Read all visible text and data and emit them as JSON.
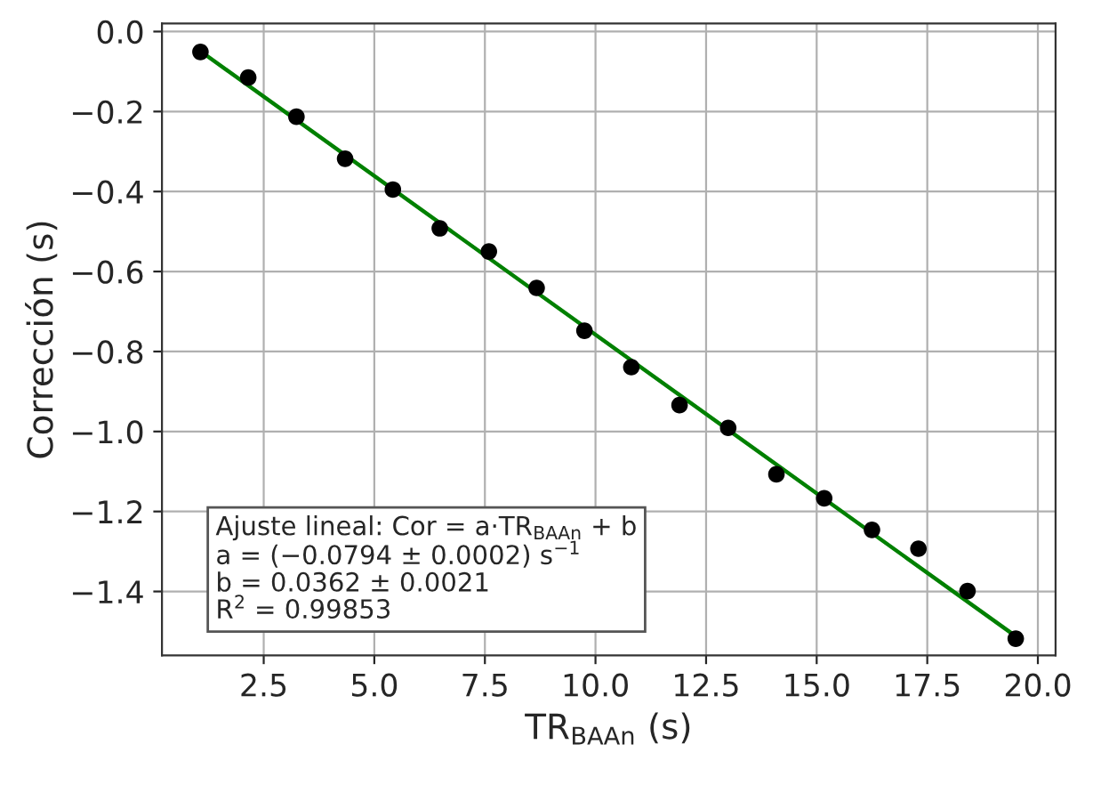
{
  "chart_data": {
    "type": "scatter",
    "xlabel": "TR$_{BAAn}$ (s)",
    "ylabel": "Corrección (s)",
    "x": [
      1.07,
      2.15,
      3.24,
      4.34,
      5.42,
      6.48,
      7.59,
      8.67,
      9.75,
      10.81,
      11.9,
      13.0,
      14.09,
      15.17,
      16.25,
      17.3,
      18.41,
      19.5
    ],
    "series": [
      {
        "color": "#000000",
        "marker": "circle",
        "values": [
          -0.051,
          -0.115,
          -0.213,
          -0.318,
          -0.395,
          -0.492,
          -0.55,
          -0.641,
          -0.748,
          -0.839,
          -0.934,
          -0.991,
          -1.107,
          -1.167,
          -1.246,
          -1.293,
          -1.399,
          -1.518
        ]
      },
      {
        "type": "line",
        "color": "#008000",
        "line_style": "solid",
        "x": [
          1.07,
          19.5
        ],
        "values": [
          -0.049,
          -1.512
        ]
      }
    ],
    "annotations": [
      "Ajuste lineal: Cor = a·TR$_{BAAn}$ + b\na = (−0.0794 ± 0.0002) s$^{−1}$\nb = 0.0362 ± 0.0021\nR$^{2}$ = 0.99853"
    ],
    "xlim": [
      0.2,
      20.4
    ],
    "ylim": [
      -1.56,
      0.02
    ],
    "xticks": [
      2.5,
      {
        "value": 5.0,
        "label": "5.0"
      },
      7.5,
      {
        "value": 10.0,
        "label": "10.0"
      },
      12.5,
      {
        "value": 15.0,
        "label": "15.0"
      },
      17.5,
      {
        "value": 20.0,
        "label": "20.0"
      }
    ],
    "yticks": [
      {
        "value": -1.4,
        "label": "−1.4"
      },
      {
        "value": -1.2,
        "label": "−1.2"
      },
      {
        "value": -1.0,
        "label": "−1.0"
      },
      {
        "value": -0.8,
        "label": "−0.8"
      },
      {
        "value": -0.6,
        "label": "−0.6"
      },
      {
        "value": -0.4,
        "label": "−0.4"
      },
      {
        "value": -0.2,
        "label": "−0.2"
      },
      {
        "value": 0.0,
        "label": "0.0"
      }
    ],
    "grid": true
  }
}
